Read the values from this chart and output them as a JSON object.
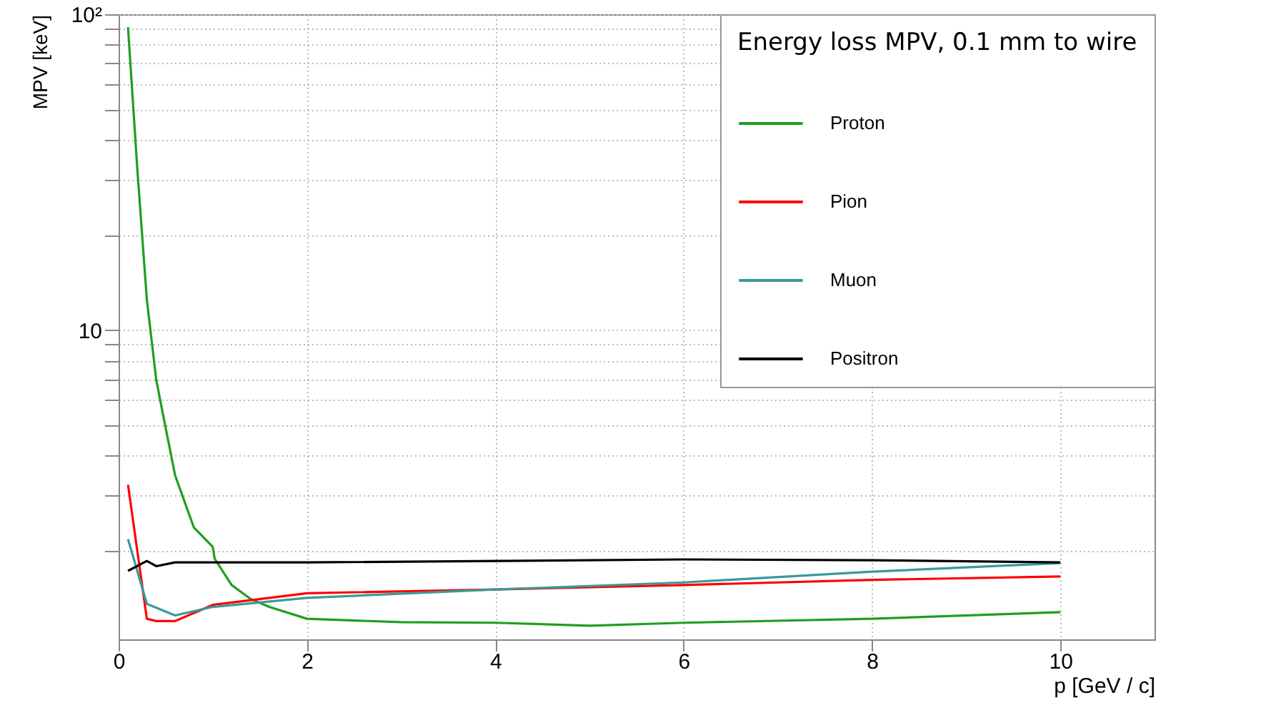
{
  "chart_data": {
    "type": "line",
    "xlabel": "p [GeV / c]",
    "ylabel": "MPV [keV]",
    "legend_title": "Energy loss MPV, 0.1 mm to wire",
    "legend": "top right",
    "grid": true,
    "log": "y",
    "xlim": [
      0,
      11
    ],
    "xticks": [
      0,
      2,
      4,
      6,
      8,
      10
    ],
    "ylim": [
      1.05,
      100
    ],
    "yticks": [
      {
        "value": 2,
        "label": null
      },
      {
        "value": 3,
        "label": null
      },
      {
        "value": 4,
        "label": null
      },
      {
        "value": 5,
        "label": null
      },
      {
        "value": 6,
        "label": null
      },
      {
        "value": 7,
        "label": null
      },
      {
        "value": 8,
        "label": null
      },
      {
        "value": 9,
        "label": null
      },
      10,
      {
        "value": 20,
        "label": null
      },
      {
        "value": 30,
        "label": null
      },
      {
        "value": 40,
        "label": null
      },
      {
        "value": 50,
        "label": null
      },
      {
        "value": 60,
        "label": null
      },
      {
        "value": 70,
        "label": null
      },
      {
        "value": 80,
        "label": null
      },
      {
        "value": 90,
        "label": null
      },
      {
        "value": 100,
        "label": "10²"
      }
    ],
    "series": [
      {
        "name": "Proton",
        "color": "#1f9f1f",
        "x": [
          0.1,
          0.2,
          0.3,
          0.4,
          0.5,
          0.6,
          0.8,
          0.9,
          1.0,
          1.02,
          1.2,
          1.4,
          1.6,
          2,
          3,
          4,
          5,
          6,
          8,
          10
        ],
        "values": [
          91,
          32,
          12.5,
          6.95,
          4.9,
          3.47,
          2.37,
          2.21,
          2.06,
          1.89,
          1.56,
          1.41,
          1.33,
          1.22,
          1.19,
          1.185,
          1.16,
          1.185,
          1.22,
          1.28
        ]
      },
      {
        "name": "Pion",
        "color": "#ff0000",
        "x": [
          0.1,
          0.3,
          0.4,
          0.6,
          1,
          2,
          4,
          6,
          8,
          10
        ],
        "values": [
          3.24,
          1.22,
          1.2,
          1.2,
          1.35,
          1.47,
          1.51,
          1.56,
          1.62,
          1.66
        ]
      },
      {
        "name": "Muon",
        "color": "#3a9a9a",
        "x": [
          0.1,
          0.3,
          0.6,
          1,
          2,
          4,
          6,
          8,
          10
        ],
        "values": [
          2.18,
          1.36,
          1.25,
          1.33,
          1.42,
          1.51,
          1.59,
          1.72,
          1.83
        ]
      },
      {
        "name": "Positron",
        "color": "#000000",
        "x": [
          0.1,
          0.3,
          0.4,
          0.6,
          2,
          6,
          8,
          10
        ],
        "values": [
          1.73,
          1.86,
          1.79,
          1.84,
          1.84,
          1.88,
          1.87,
          1.84
        ]
      }
    ]
  }
}
